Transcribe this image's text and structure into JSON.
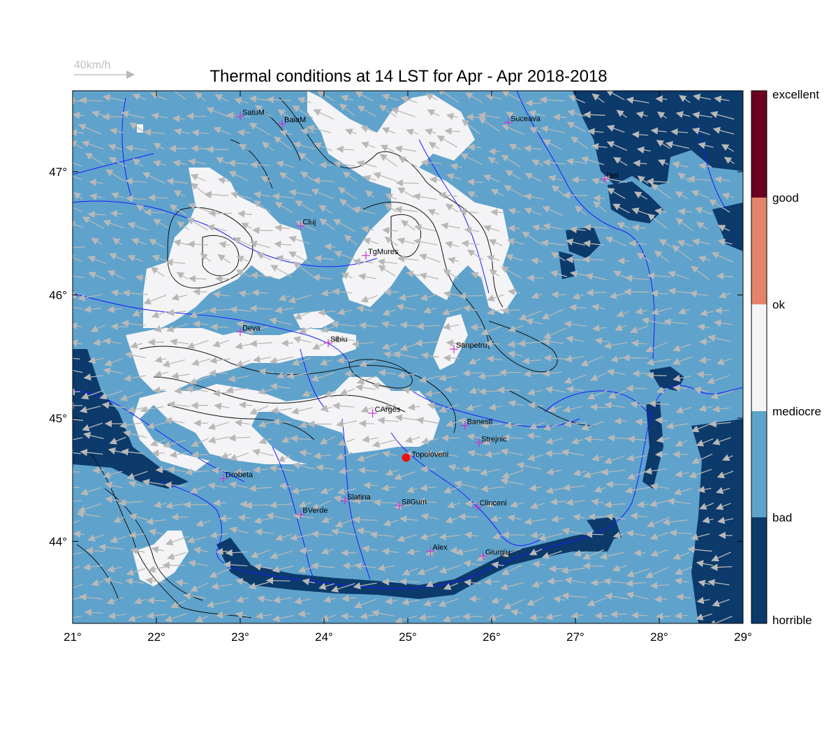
{
  "title": "Thermal conditions at 14 LST for Apr - Apr  2018-2018",
  "wind_scale": {
    "label": "40km/h"
  },
  "lon_ticks": [
    "21°",
    "22°",
    "23°",
    "24°",
    "25°",
    "26°",
    "27°",
    "28°",
    "29°"
  ],
  "lat_ticks": [
    "44°",
    "45°",
    "46°",
    "47°"
  ],
  "colors": {
    "horrible": "#0b3a6b",
    "bad": "#5fa3cc",
    "mediocre": "#f4f4f6",
    "ok": "#e5836a",
    "good": "#6b0020",
    "river": "#1a1aff",
    "marker": "#cc33cc",
    "highlight": "#ee1111",
    "wind": "#b8b8b8"
  },
  "colorbar": {
    "labels": [
      "excellent",
      "good",
      "ok",
      "mediocre",
      "bad",
      "horrible"
    ]
  },
  "cities": [
    {
      "name": "SatuM",
      "lon": 23.0,
      "lat": 47.45
    },
    {
      "name": "BaiaM",
      "lon": 23.5,
      "lat": 47.39
    },
    {
      "name": "Suceava",
      "lon": 26.2,
      "lat": 47.4
    },
    {
      "name": "Iasi",
      "lon": 27.35,
      "lat": 46.94
    },
    {
      "name": "Cluj",
      "lon": 23.72,
      "lat": 46.56
    },
    {
      "name": "TgMures",
      "lon": 24.5,
      "lat": 46.32
    },
    {
      "name": "Deva",
      "lon": 23.0,
      "lat": 45.7
    },
    {
      "name": "Sibiu",
      "lon": 24.05,
      "lat": 45.61
    },
    {
      "name": "Sanpetru",
      "lon": 25.55,
      "lat": 45.56
    },
    {
      "name": "CArges",
      "lon": 24.58,
      "lat": 45.04
    },
    {
      "name": "Banesti",
      "lon": 25.68,
      "lat": 44.94
    },
    {
      "name": "Strejnic",
      "lon": 25.85,
      "lat": 44.8
    },
    {
      "name": "Drobeta",
      "lon": 22.8,
      "lat": 44.51
    },
    {
      "name": "Slatina",
      "lon": 24.25,
      "lat": 44.33
    },
    {
      "name": "SilGum",
      "lon": 24.9,
      "lat": 44.29
    },
    {
      "name": "Clinceni",
      "lon": 25.83,
      "lat": 44.28
    },
    {
      "name": "BVerde",
      "lon": 23.72,
      "lat": 44.22
    },
    {
      "name": "Alex",
      "lon": 25.27,
      "lat": 43.92
    },
    {
      "name": "Giurgiu",
      "lon": 25.9,
      "lat": 43.88
    }
  ],
  "highlight_city": {
    "name": "Topoloveni",
    "lon": 24.98,
    "lat": 44.68
  }
}
